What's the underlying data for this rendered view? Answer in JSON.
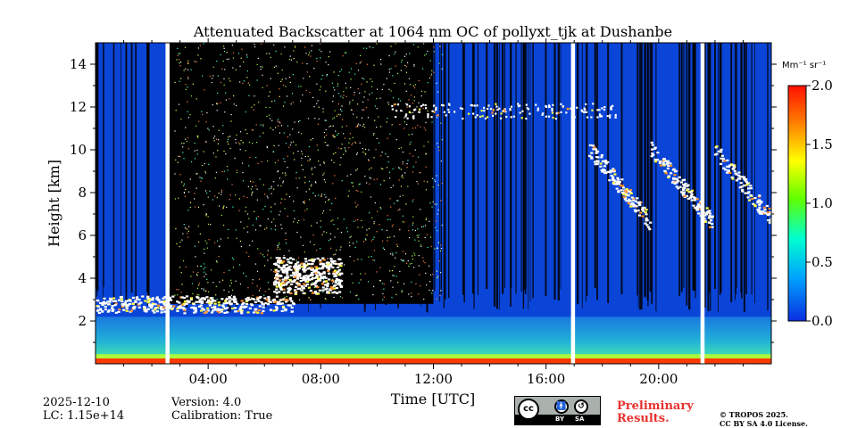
{
  "chart_data": {
    "type": "heatmap",
    "title": "Attenuated Backscatter at 1064 nm OC of pollyxt_tjk at Dushanbe",
    "xlabel": "Time [UTC]",
    "ylabel": "Height [km]",
    "x_range_hours": [
      0,
      24
    ],
    "y_range_km": [
      0,
      15
    ],
    "x_ticks": [
      "04:00",
      "08:00",
      "12:00",
      "16:00",
      "20:00"
    ],
    "x_tick_hours": [
      4,
      8,
      12,
      16,
      20
    ],
    "y_ticks": [
      2,
      4,
      6,
      8,
      10,
      12,
      14
    ],
    "colorbar": {
      "unit": "Mm⁻¹ sr⁻¹",
      "range": [
        0.0,
        2.0
      ],
      "ticks": [
        "0.0",
        "0.5",
        "1.0",
        "1.5",
        "2.0"
      ],
      "colormap": [
        "#0a2ee0",
        "#00a0ff",
        "#00ffd0",
        "#60ff00",
        "#ffff00",
        "#ff8000",
        "#ff1000"
      ]
    },
    "colors": {
      "low_signal": "#0a45d8",
      "no_signal": "#000000",
      "saturated": "#ffffff",
      "boundary_layer": "#22b8d0",
      "surface": "#ff3a00"
    },
    "data_gaps_hours": [
      2.55,
      16.95,
      21.55
    ],
    "features": [
      {
        "name": "aerosol layer",
        "start_h": 0.0,
        "end_h": 7.0,
        "height_km": [
          2.4,
          3.2
        ],
        "value": 2.0
      },
      {
        "name": "low cloud",
        "start_h": 6.3,
        "end_h": 8.7,
        "height_km": [
          3.3,
          5.0
        ],
        "value": 2.0
      },
      {
        "name": "cirrus",
        "start_h": 10.5,
        "end_h": 18.5,
        "height_km": [
          11.5,
          12.2
        ],
        "value": 1.6
      },
      {
        "name": "cloud band",
        "start_h": 17.5,
        "end_h": 24.0,
        "height_km": [
          7.0,
          10.5
        ],
        "value": 2.0
      },
      {
        "name": "boundary layer",
        "start_h": 0.0,
        "end_h": 24.0,
        "height_km": [
          0.0,
          2.2
        ],
        "value": 0.4
      }
    ]
  },
  "meta": {
    "date": "2025-12-10",
    "lc": "LC: 1.15e+14",
    "version": "Version: 4.0",
    "calibration": "Calibration: True"
  },
  "license": {
    "badge_cc": "cc",
    "badge_by": "BY",
    "badge_sa": "SA",
    "preliminary_line1": "Preliminary",
    "preliminary_line2": "Results.",
    "copyright_line1": "© TROPOS 2025.",
    "copyright_line2": "CC BY SA 4.0 License."
  }
}
